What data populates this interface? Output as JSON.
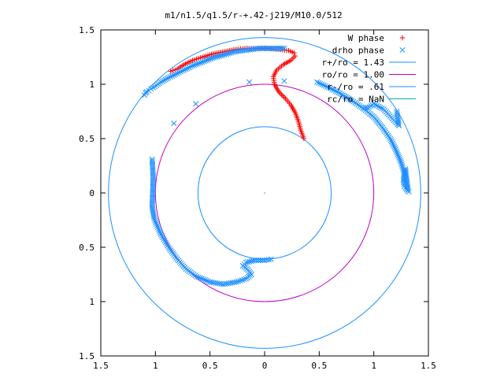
{
  "chart_data": {
    "type": "scatter",
    "title": "m1/n1.5/q1.5/r-+.42-j219/M10.0/512",
    "xlabel": "",
    "ylabel": "",
    "xlim": [
      -1.5,
      1.5
    ],
    "ylim": [
      -1.5,
      1.5
    ],
    "xticks": [
      -1.5,
      -1,
      -0.5,
      0,
      0.5,
      1,
      1.5
    ],
    "yticks": [
      -1.5,
      -1,
      -0.5,
      0,
      0.5,
      1,
      1.5
    ],
    "xtick_labels": [
      "1.5",
      "1",
      "0.5",
      "0",
      "0.5",
      "1",
      "1.5"
    ],
    "ytick_labels": [
      "1.5",
      "1",
      "0.5",
      "0",
      "0.5",
      "1",
      "1.5"
    ],
    "grid": false,
    "legend_position": "top-right",
    "series": [
      {
        "name": "W phase",
        "kind": "points",
        "marker": "plus",
        "color": "#ff0000",
        "points": [
          [
            0.36,
            0.5
          ],
          [
            0.33,
            0.58
          ],
          [
            0.31,
            0.66
          ],
          [
            0.28,
            0.74
          ],
          [
            0.24,
            0.81
          ],
          [
            0.19,
            0.87
          ],
          [
            0.13,
            0.93
          ],
          [
            0.09,
            1.0
          ],
          [
            0.08,
            1.07
          ],
          [
            0.11,
            1.13
          ],
          [
            0.17,
            1.18
          ],
          [
            0.24,
            1.22
          ],
          [
            0.28,
            1.26
          ],
          [
            0.27,
            1.29
          ],
          [
            0.22,
            1.31
          ],
          [
            0.13,
            1.32
          ],
          [
            0.03,
            1.33
          ],
          [
            -0.07,
            1.33
          ],
          [
            -0.17,
            1.33
          ],
          [
            -0.27,
            1.32
          ],
          [
            -0.37,
            1.3
          ],
          [
            -0.47,
            1.28
          ],
          [
            -0.57,
            1.25
          ],
          [
            -0.66,
            1.22
          ],
          [
            -0.74,
            1.18
          ],
          [
            -0.8,
            1.14
          ],
          [
            -0.86,
            1.12
          ]
        ]
      },
      {
        "name": "drho phase",
        "kind": "points",
        "marker": "cross",
        "color": "#1e90ff",
        "points": [
          [
            -1.1,
            0.9
          ],
          [
            -1.09,
            0.92
          ],
          [
            -1.08,
            0.93
          ],
          [
            -1.06,
            0.94
          ],
          [
            -1.04,
            0.96
          ],
          [
            -1.02,
            0.97
          ],
          [
            -0.99,
            0.99
          ],
          [
            -0.95,
            1.02
          ],
          [
            -0.88,
            1.06
          ],
          [
            -0.8,
            1.1
          ],
          [
            -0.66,
            1.17
          ],
          [
            -0.48,
            1.24
          ],
          [
            -0.27,
            1.3
          ],
          [
            -0.05,
            1.33
          ],
          [
            0.18,
            1.33
          ],
          [
            -0.63,
            0.82
          ],
          [
            -0.14,
            1.02
          ],
          [
            0.18,
            1.03
          ],
          [
            0.48,
            1.02
          ],
          [
            0.65,
            0.94
          ],
          [
            0.8,
            0.85
          ],
          [
            0.9,
            0.78
          ],
          [
            1.0,
            0.7
          ],
          [
            1.08,
            0.6
          ],
          [
            1.15,
            0.5
          ],
          [
            1.2,
            0.4
          ],
          [
            1.25,
            0.28
          ],
          [
            1.28,
            0.18
          ],
          [
            1.3,
            0.08
          ],
          [
            1.31,
            0.02
          ],
          [
            1.28,
            0.06
          ],
          [
            1.27,
            0.12
          ],
          [
            1.29,
            0.22
          ],
          [
            1.31,
            0.05
          ],
          [
            1.32,
            0.01
          ],
          [
            1.21,
            0.75
          ],
          [
            1.23,
            0.62
          ],
          [
            1.09,
            0.77
          ],
          [
            1.0,
            0.82
          ],
          [
            0.96,
            0.79
          ],
          [
            0.9,
            0.78
          ],
          [
            -0.83,
            0.64
          ],
          [
            -1.03,
            0.31
          ],
          [
            -1.02,
            0.14
          ],
          [
            -1.03,
            -0.13
          ],
          [
            -1.01,
            -0.24
          ],
          [
            -0.95,
            -0.38
          ],
          [
            -0.88,
            -0.5
          ],
          [
            -0.8,
            -0.61
          ],
          [
            -0.72,
            -0.7
          ],
          [
            -0.62,
            -0.77
          ],
          [
            -0.5,
            -0.82
          ],
          [
            -0.38,
            -0.84
          ],
          [
            -0.26,
            -0.82
          ],
          [
            -0.17,
            -0.79
          ],
          [
            -0.12,
            -0.75
          ],
          [
            -0.15,
            -0.71
          ],
          [
            -0.2,
            -0.67
          ],
          [
            -0.17,
            -0.64
          ],
          [
            -0.09,
            -0.62
          ],
          [
            0.0,
            -0.62
          ],
          [
            0.06,
            -0.61
          ]
        ]
      },
      {
        "name": "r+/ro = 1.43",
        "kind": "circle",
        "radius": 1.43,
        "color": "#1e90ff"
      },
      {
        "name": "ro/ro = 1.00",
        "kind": "circle",
        "radius": 1.0,
        "color": "#c000c0"
      },
      {
        "name": "r-/ro = .61",
        "kind": "circle",
        "radius": 0.61,
        "color": "#1e90ff"
      },
      {
        "name": "rc/ro = NaN",
        "kind": "circle",
        "radius": null,
        "color": "#00b0b0"
      }
    ]
  }
}
